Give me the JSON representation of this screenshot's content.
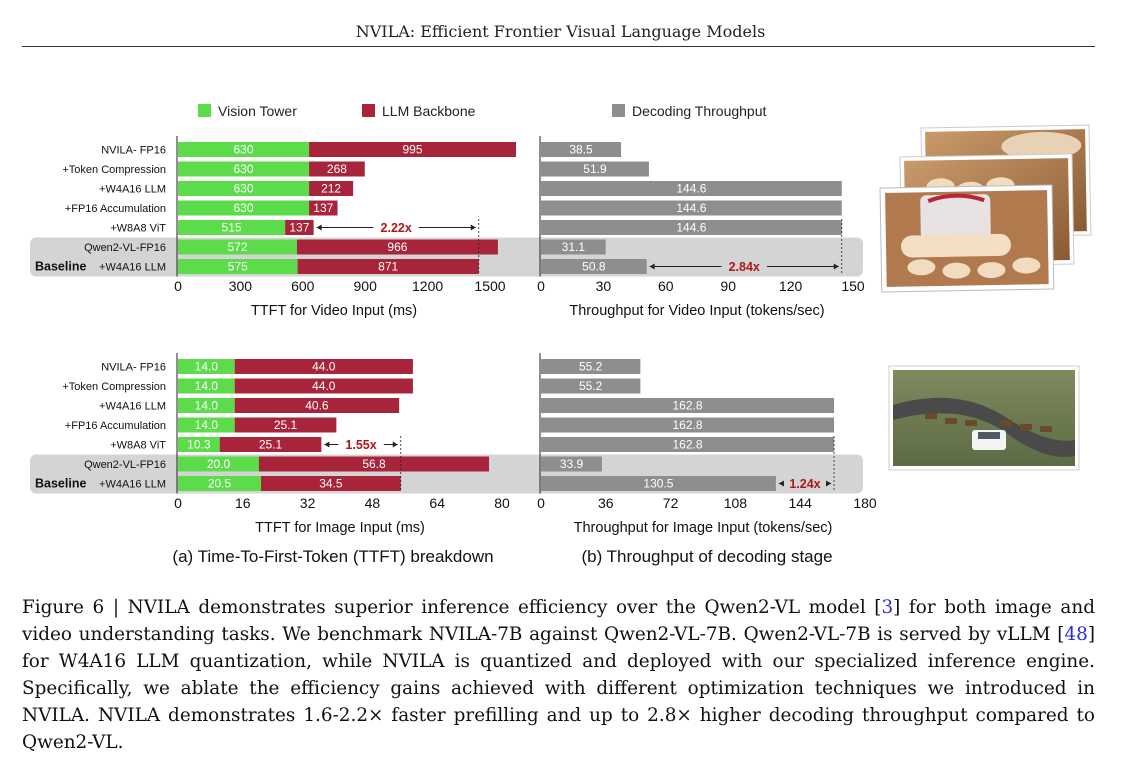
{
  "header": {
    "title": "NVILA: Efficient Frontier Visual Language Models"
  },
  "legend": {
    "vision": "Vision Tower",
    "llm": "LLM Backbone",
    "decoding": "Decoding Throughput"
  },
  "colors": {
    "vision": "#5cdc4a",
    "llm": "#a8243a",
    "decoding": "#8e8e8e",
    "highlight": "#b01818"
  },
  "row_labels": [
    "NVILA- FP16",
    "+Token Compression",
    "+W4A16 LLM",
    "+FP16 Accumulation",
    "+W8A8 ViT",
    "Qwen2-VL-FP16",
    "+W4A16 LLM"
  ],
  "baseline_label": "Baseline",
  "subcaptions": {
    "a": "(a) Time-To-First-Token (TTFT) breakdown",
    "b": "(b) Throughput of decoding stage"
  },
  "chart_data": [
    {
      "type": "bar",
      "orientation": "horizontal",
      "stacked": true,
      "categories": [
        "NVILA- FP16",
        "+Token Compression",
        "+W4A16 LLM",
        "+FP16 Accumulation",
        "+W8A8 ViT",
        "Qwen2-VL-FP16",
        "+W4A16 LLM"
      ],
      "series": [
        {
          "name": "Vision Tower",
          "values": [
            630,
            630,
            630,
            630,
            515,
            572,
            575
          ]
        },
        {
          "name": "LLM Backbone",
          "values": [
            995,
            268,
            212,
            137,
            137,
            966,
            871
          ]
        }
      ],
      "xlabel": "TTFT for Video Input (ms)",
      "xlim": [
        0,
        1500
      ],
      "xticks": [
        0,
        300,
        600,
        900,
        1200,
        1500
      ],
      "annotation": "2.22x"
    },
    {
      "type": "bar",
      "orientation": "horizontal",
      "categories": [
        "NVILA- FP16",
        "+Token Compression",
        "+W4A16 LLM",
        "+FP16 Accumulation",
        "+W8A8 ViT",
        "Qwen2-VL-FP16",
        "+W4A16 LLM"
      ],
      "series": [
        {
          "name": "Decoding Throughput",
          "values": [
            38.5,
            51.9,
            144.6,
            144.6,
            144.6,
            31.1,
            50.8
          ]
        }
      ],
      "xlabel": "Throughput for Video Input (tokens/sec)",
      "xlim": [
        0,
        150
      ],
      "xticks": [
        0,
        30,
        60,
        90,
        120,
        150
      ],
      "annotation": "2.84x"
    },
    {
      "type": "bar",
      "orientation": "horizontal",
      "stacked": true,
      "categories": [
        "NVILA- FP16",
        "+Token Compression",
        "+W4A16 LLM",
        "+FP16 Accumulation",
        "+W8A8 ViT",
        "Qwen2-VL-FP16",
        "+W4A16 LLM"
      ],
      "series": [
        {
          "name": "Vision Tower",
          "values": [
            14.0,
            14.0,
            14.0,
            14.0,
            10.3,
            20.0,
            20.5
          ]
        },
        {
          "name": "LLM Backbone",
          "values": [
            44.0,
            44.0,
            40.6,
            25.1,
            25.1,
            56.8,
            34.5
          ]
        }
      ],
      "xlabel": "TTFT for Image Input (ms)",
      "xlim": [
        0,
        80
      ],
      "xticks": [
        0,
        16,
        32,
        48,
        64,
        80
      ],
      "annotation": "1.55x"
    },
    {
      "type": "bar",
      "orientation": "horizontal",
      "categories": [
        "NVILA- FP16",
        "+Token Compression",
        "+W4A16 LLM",
        "+FP16 Accumulation",
        "+W8A8 ViT",
        "Qwen2-VL-FP16",
        "+W4A16 LLM"
      ],
      "series": [
        {
          "name": "Decoding Throughput",
          "values": [
            55.2,
            55.2,
            162.8,
            162.8,
            162.8,
            33.9,
            130.5
          ]
        }
      ],
      "xlabel": "Throughput for Image Input (tokens/sec)",
      "xlim": [
        0,
        180
      ],
      "xticks": [
        0,
        36,
        72,
        108,
        144,
        180
      ],
      "annotation": "1.24x"
    }
  ],
  "caption": {
    "lead": "Figure 6 | NVILA demonstrates superior inference efficiency over the Qwen2-VL model [",
    "ref1": "3",
    "mid1": "] for both image and video understanding tasks. We benchmark NVILA-7B against Qwen2-VL-7B. Qwen2-VL-7B is served by vLLM [",
    "ref2": "48",
    "rest": "] for W4A16 LLM quantization, while NVILA is quantized and deployed with our specialized inference engine. Specifically, we ablate the efficiency gains achieved with different optimization techniques we introduced in NVILA. NVILA demonstrates 1.6-2.2× faster prefilling and up to 2.8× higher decoding throughput compared to Qwen2-VL."
  }
}
